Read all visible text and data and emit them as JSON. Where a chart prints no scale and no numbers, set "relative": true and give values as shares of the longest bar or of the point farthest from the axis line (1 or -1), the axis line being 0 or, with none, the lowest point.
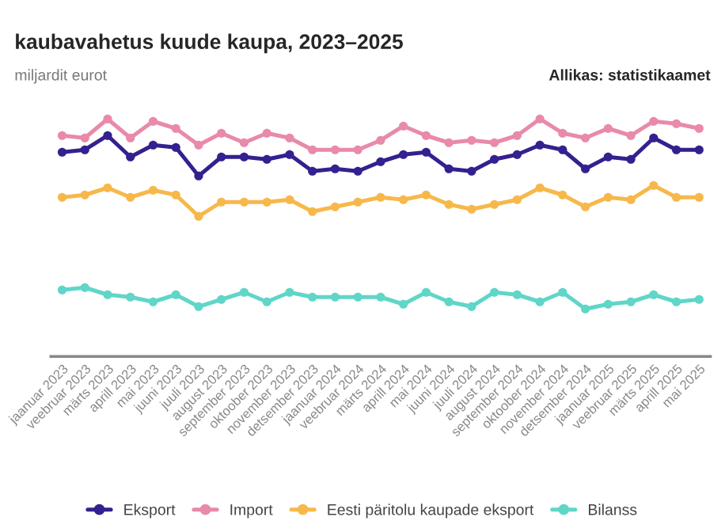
{
  "chart_data": {
    "type": "line",
    "title": "kaubavahetus kuude kaupa, 2023–2025",
    "ylabel": "miljardit eurot",
    "annotations": [
      "Allikas: statistikaamet"
    ],
    "categories": [
      "jaanuar 2023",
      "veebruar 2023",
      "märts 2023",
      "aprill 2023",
      "mai 2023",
      "juuni 2023",
      "juuli 2023",
      "august 2023",
      "september 2023",
      "oktoober 2023",
      "november 2023",
      "detsember 2023",
      "jaanuar 2024",
      "veebruar 2024",
      "märts 2024",
      "aprill 2024",
      "mai 2024",
      "juuni 2024",
      "juuli 2024",
      "august 2024",
      "september 2024",
      "oktoober 2024",
      "november 2024",
      "detsember 2024",
      "jaanuar 2025",
      "veebruar 2025",
      "märts 2025",
      "aprill 2025",
      "mai 2025"
    ],
    "relative": true,
    "legend": "bottom",
    "marker": "circle",
    "line_style": "solid",
    "series": [
      {
        "name": "Eksport",
        "color": "#35208f",
        "values": [
          0.86,
          0.87,
          0.93,
          0.84,
          0.89,
          0.88,
          0.76,
          0.84,
          0.84,
          0.83,
          0.85,
          0.78,
          0.79,
          0.78,
          0.82,
          0.85,
          0.86,
          0.79,
          0.78,
          0.83,
          0.85,
          0.89,
          0.87,
          0.79,
          0.84,
          0.83,
          0.92,
          0.87,
          0.87
        ]
      },
      {
        "name": "Import",
        "color": "#e88aa8",
        "values": [
          0.93,
          0.92,
          1.0,
          0.92,
          0.99,
          0.96,
          0.89,
          0.94,
          0.9,
          0.94,
          0.92,
          0.87,
          0.87,
          0.87,
          0.91,
          0.97,
          0.93,
          0.9,
          0.91,
          0.9,
          0.93,
          1.0,
          0.94,
          0.92,
          0.96,
          0.93,
          0.99,
          0.98,
          0.96
        ]
      },
      {
        "name": "Eesti päritolu kaupade eksport",
        "color": "#f7b84b",
        "values": [
          0.67,
          0.68,
          0.71,
          0.67,
          0.7,
          0.68,
          0.59,
          0.65,
          0.65,
          0.65,
          0.66,
          0.61,
          0.63,
          0.65,
          0.67,
          0.66,
          0.68,
          0.64,
          0.62,
          0.64,
          0.66,
          0.71,
          0.68,
          0.63,
          0.67,
          0.66,
          0.72,
          0.67,
          0.67
        ]
      },
      {
        "name": "Bilanss",
        "color": "#5fd6c8",
        "values": [
          0.28,
          0.29,
          0.26,
          0.25,
          0.23,
          0.26,
          0.21,
          0.24,
          0.27,
          0.23,
          0.27,
          0.25,
          0.25,
          0.25,
          0.25,
          0.22,
          0.27,
          0.23,
          0.21,
          0.27,
          0.26,
          0.23,
          0.27,
          0.2,
          0.22,
          0.23,
          0.26,
          0.23,
          0.24
        ]
      }
    ]
  }
}
